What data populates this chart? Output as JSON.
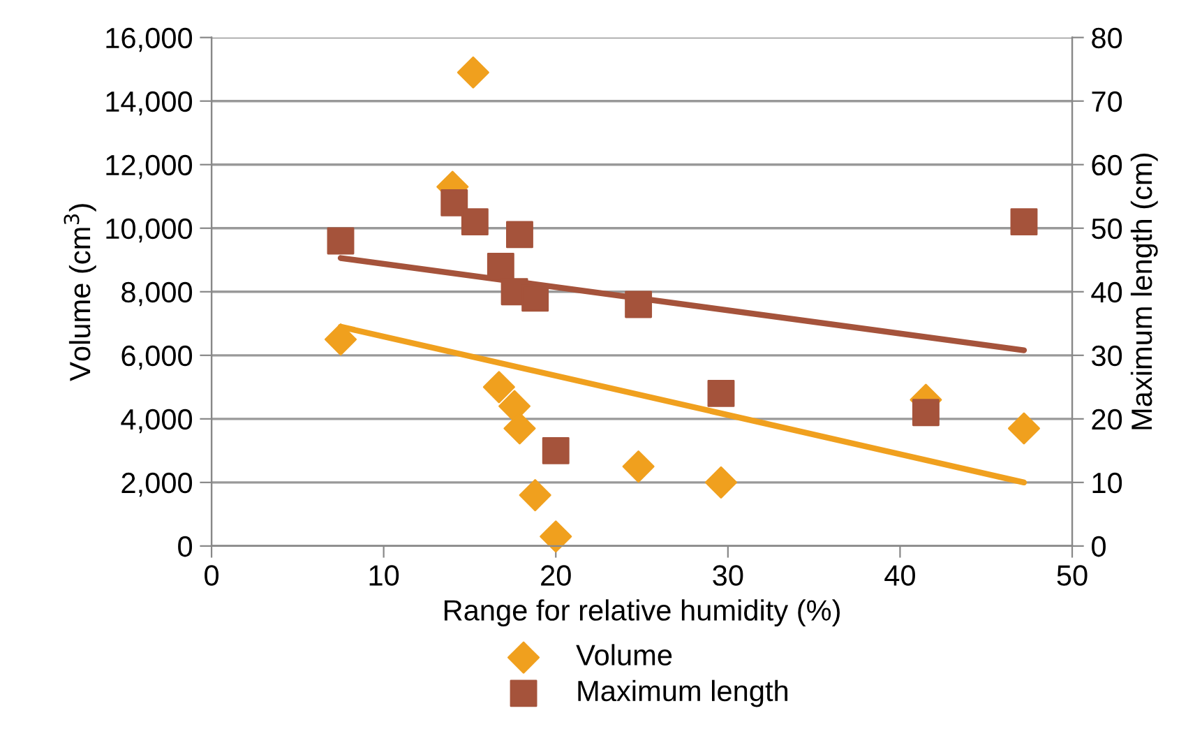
{
  "chart_data": {
    "type": "scatter",
    "xlabel": "Range for relative humidity (%)",
    "ylabel": "Volume (cm$^{3}$)",
    "y2label": "Maximum length (cm)",
    "xlim": [
      0,
      50
    ],
    "xticks": [
      0,
      10,
      20,
      30,
      40,
      50
    ],
    "ylim": [
      0,
      16000
    ],
    "yticks": [
      {
        "value": 0,
        "label": "0"
      },
      {
        "value": 2000,
        "label": "2,000"
      },
      {
        "value": 4000,
        "label": "4,000"
      },
      {
        "value": 6000,
        "label": "6,000"
      },
      {
        "value": 8000,
        "label": "8,000"
      },
      {
        "value": 10000,
        "label": "10,000"
      },
      {
        "value": 12000,
        "label": "12,000"
      },
      {
        "value": 14000,
        "label": "14,000"
      },
      {
        "value": 16000,
        "label": "16,000"
      }
    ],
    "y2lim": [
      0,
      80
    ],
    "y2ticks": [
      0,
      10,
      20,
      30,
      40,
      50,
      60,
      70,
      80
    ],
    "grid": "y",
    "legend": "bottom",
    "series": [
      {
        "name": "Volume",
        "marker": "diamond",
        "color": "#f0a01e",
        "x": [
          7.5,
          14.0,
          15.2,
          16.7,
          17.6,
          17.9,
          18.8,
          20.0,
          24.8,
          29.6,
          41.5,
          47.2
        ],
        "values": [
          6500,
          11300,
          14900,
          5000,
          4400,
          3700,
          1600,
          300,
          2500,
          2000,
          4600,
          3700
        ]
      },
      {
        "name": "Maximum length",
        "marker": "square",
        "color": "#a5533b",
        "axis": "y2",
        "x": [
          7.5,
          14.1,
          15.3,
          17.9,
          16.8,
          17.6,
          18.8,
          20.0,
          24.8,
          29.6,
          41.5,
          47.2
        ],
        "values": [
          48,
          54,
          51,
          49,
          44,
          40,
          39,
          15,
          38,
          24,
          21,
          51
        ]
      },
      {
        "type": "line",
        "color": "#f0a01e",
        "x": [
          7.5,
          47.2
        ],
        "values": [
          6900,
          2000
        ]
      },
      {
        "type": "line",
        "color": "#a5533b",
        "axis": "y2",
        "x": [
          7.5,
          47.2
        ],
        "values": [
          45.3,
          30.8
        ]
      }
    ]
  }
}
